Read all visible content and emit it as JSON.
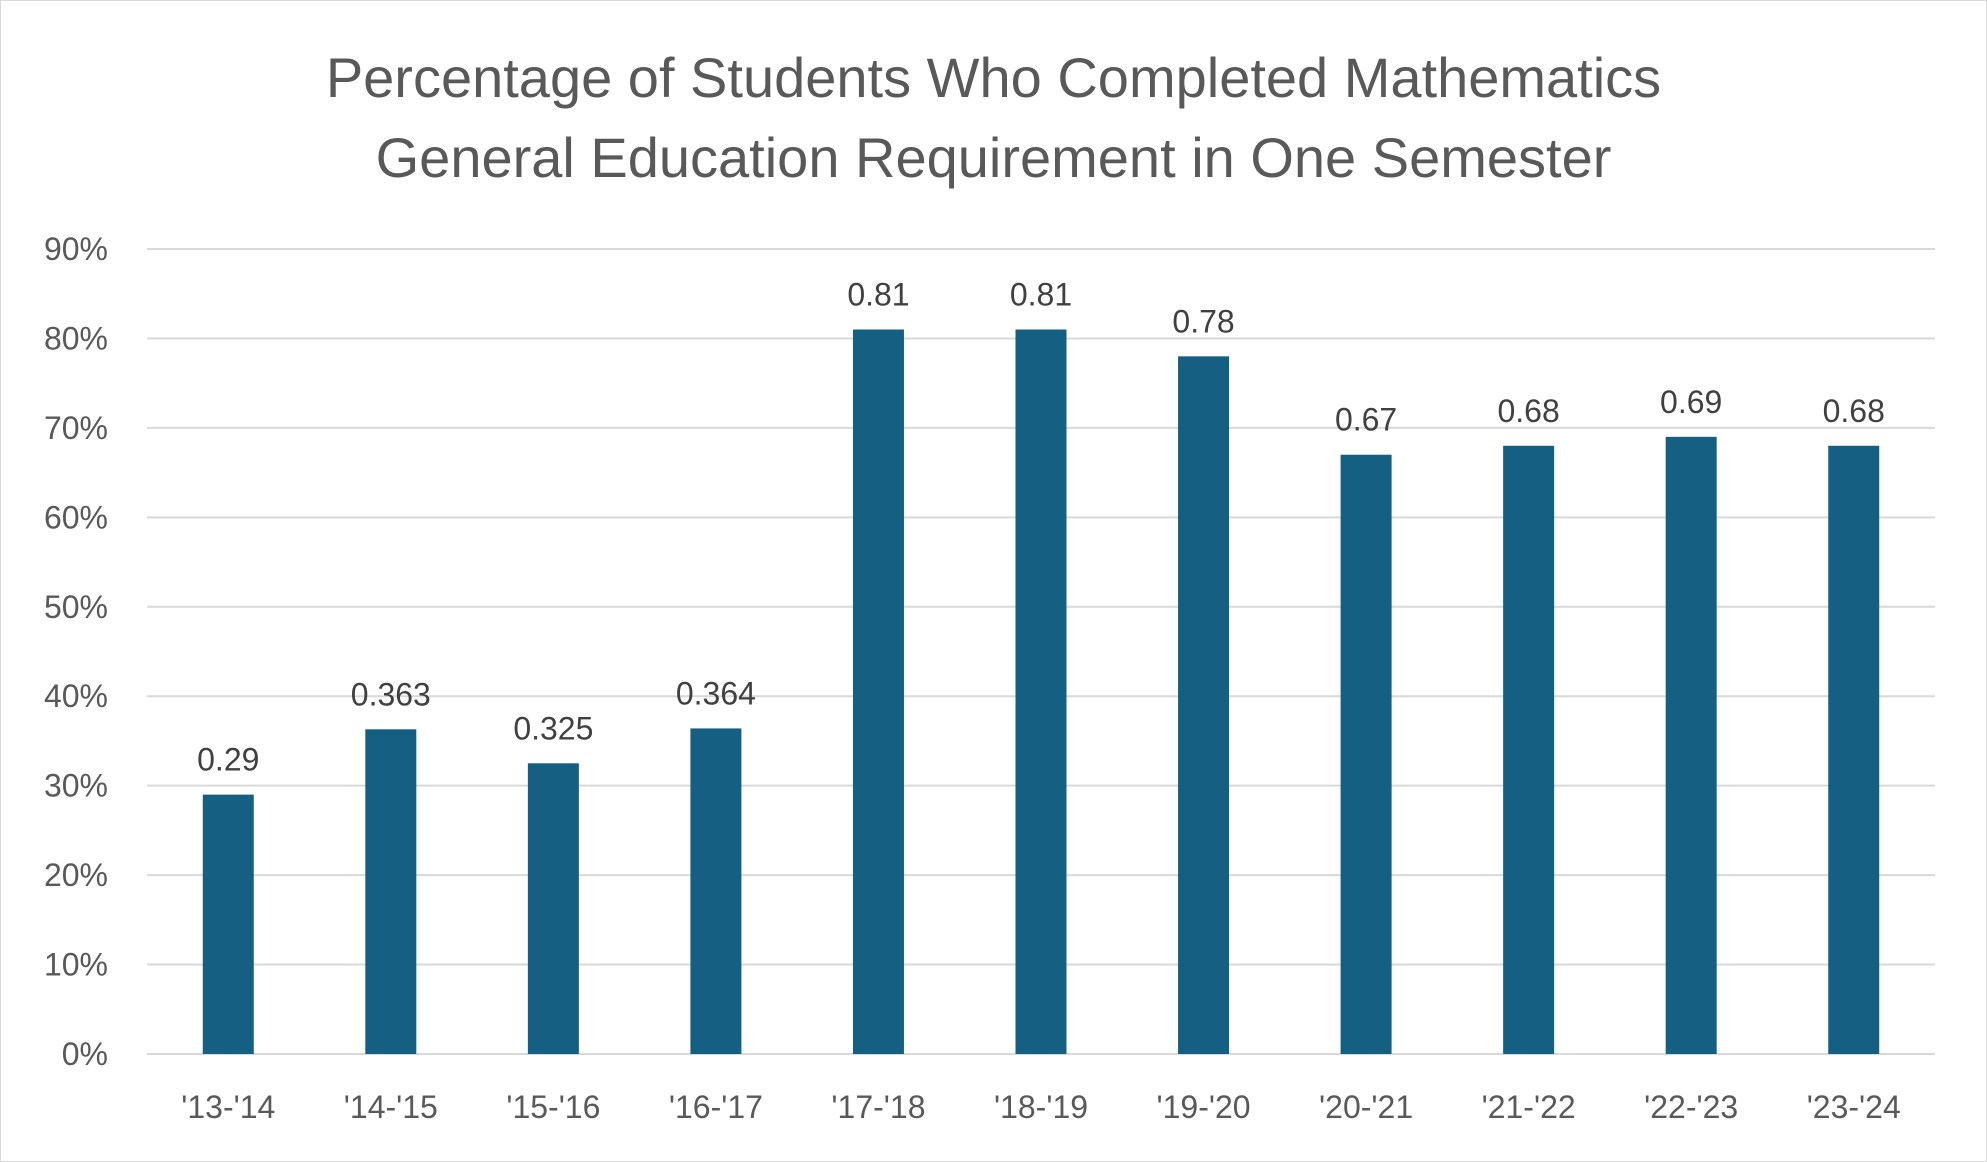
{
  "chart_data": {
    "type": "bar",
    "title_lines": [
      "Percentage of Students Who Completed Mathematics",
      "General Education Requirement in One Semester"
    ],
    "categories": [
      "'13-'14",
      "'14-'15",
      "'15-'16",
      "'16-'17",
      "'17-'18",
      "'18-'19",
      "'19-'20",
      "'20-'21",
      "'21-'22",
      "'22-'23",
      "'23-'24"
    ],
    "values": [
      0.29,
      0.363,
      0.325,
      0.364,
      0.81,
      0.81,
      0.78,
      0.67,
      0.68,
      0.69,
      0.68
    ],
    "data_labels": [
      "0.29",
      "0.363",
      "0.325",
      "0.364",
      "0.81",
      "0.81",
      "0.78",
      "0.67",
      "0.68",
      "0.69",
      "0.68"
    ],
    "ylim": [
      0,
      0.9
    ],
    "yticks": [
      0,
      0.1,
      0.2,
      0.3,
      0.4,
      0.5,
      0.6,
      0.7,
      0.8,
      0.9
    ],
    "ytick_labels": [
      "0%",
      "10%",
      "20%",
      "30%",
      "40%",
      "50%",
      "60%",
      "70%",
      "80%",
      "90%"
    ],
    "grid": true,
    "legend": "none",
    "colors": {
      "bar": "#156082",
      "grid": "#d9d9d9",
      "text": "#595959",
      "label": "#404040"
    }
  }
}
